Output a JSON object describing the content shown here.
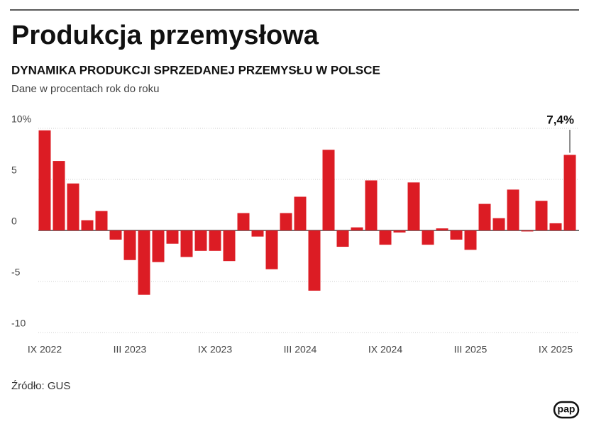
{
  "chart_data": {
    "type": "bar",
    "title": "Produkcja przemysłowa",
    "subtitle": "DYNAMIKA PRODUKCJI SPRZEDANEJ PRZEMYSŁU W POLSCE",
    "note": "Dane w procentach rok do roku",
    "source": "Źródło: GUS",
    "logo": "pap",
    "categories": [
      "IX 2022",
      null,
      null,
      null,
      null,
      null,
      "III 2023",
      null,
      null,
      null,
      null,
      null,
      "IX 2023",
      null,
      null,
      null,
      null,
      null,
      "III 2024",
      null,
      null,
      null,
      null,
      null,
      "IX 2024",
      null,
      null,
      null,
      null,
      null,
      "III 2025",
      null,
      null,
      null,
      null,
      null,
      "IX 2025",
      null
    ],
    "values": [
      9.8,
      6.8,
      4.6,
      1.0,
      1.9,
      -0.9,
      -2.9,
      -6.3,
      -3.1,
      -1.3,
      -2.6,
      -2.0,
      -2.0,
      -3.0,
      1.7,
      -0.6,
      -3.8,
      1.7,
      3.3,
      -5.9,
      7.9,
      -1.6,
      0.3,
      4.9,
      -1.4,
      -0.2,
      4.7,
      -1.4,
      0.2,
      -0.9,
      -1.9,
      2.6,
      1.2,
      4.0,
      -0.1,
      2.9,
      0.7,
      7.4
    ],
    "value_labels": [
      null,
      null,
      null,
      null,
      null,
      null,
      null,
      null,
      null,
      null,
      null,
      null,
      null,
      null,
      null,
      null,
      null,
      null,
      null,
      null,
      null,
      null,
      null,
      null,
      null,
      null,
      null,
      null,
      null,
      null,
      null,
      null,
      null,
      null,
      null,
      null,
      null,
      "7,4%"
    ],
    "color": "#dc1c24",
    "ylim": [
      -10,
      11
    ],
    "yticks": [
      {
        "value": 10,
        "label": "10%"
      },
      5,
      0,
      -5,
      -10
    ],
    "grid": true
  }
}
